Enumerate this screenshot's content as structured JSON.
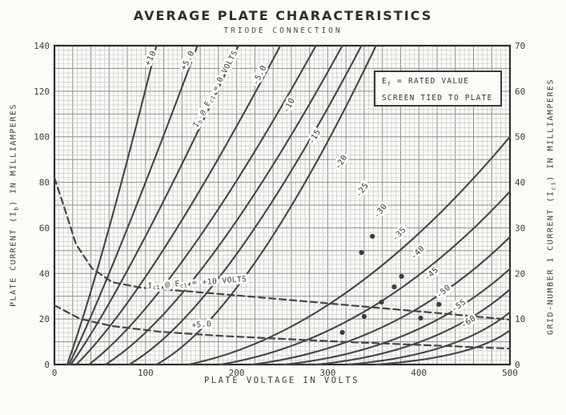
{
  "chart_data": {
    "type": "line",
    "title": "AVERAGE PLATE CHARACTERISTICS",
    "subtitle": "TRIODE CONNECTION",
    "xlabel": "PLATE VOLTAGE IN VOLTS",
    "ylabel_left": "PLATE CURRENT (Ib) IN MILLIAMPERES",
    "ylabel_right": "GRID-NUMBER 1 CURRENT (Ic1) IN MILLIAMPERES",
    "ylabel_left_parts": {
      "pre": "PLATE CURRENT (I",
      "sub": "b",
      "post": ") IN MILLIAMPERES"
    },
    "ylabel_right_parts": {
      "pre": "GRID-NUMBER 1 CURRENT (I",
      "sub": "c1",
      "post": ") IN MILLIAMPERES"
    },
    "annotation": {
      "line1_pre": "E",
      "line1_sub": "f",
      "line1_post": " = RATED VALUE",
      "line2": "SCREEN TIED TO PLATE"
    },
    "xlim": [
      0,
      500
    ],
    "ylim_left": [
      0,
      140
    ],
    "ylim_right": [
      0,
      70
    ],
    "x_ticks": [
      0,
      100,
      200,
      300,
      400,
      500
    ],
    "y_ticks_left": [
      0,
      20,
      40,
      60,
      80,
      100,
      120,
      140
    ],
    "y_ticks_right": [
      0,
      10,
      20,
      30,
      40,
      50,
      60,
      70
    ],
    "grid": "fine graph paper, minor 5V x 2mA, major 20V x 10mA",
    "colors": {
      "ink": "#454545",
      "paper": "#fcfbf8",
      "grid_minor": "#c0c0c0",
      "grid_major": "#8d8d8d",
      "frame": "#2e2e2e"
    },
    "plate_series": [
      {
        "grid_volts": "+10",
        "start": [
          14,
          0
        ],
        "ctrl": [
          50,
          40
        ],
        "end": [
          112,
          140
        ],
        "label": "+10",
        "label_at": [
          108,
          134
        ],
        "label_rot": -63
      },
      {
        "grid_volts": "+5.0",
        "start": [
          16,
          0
        ],
        "ctrl": [
          62,
          38
        ],
        "end": [
          157,
          140
        ],
        "label": "+5.0",
        "label_at": [
          148.5,
          133
        ],
        "label_rot": -63
      },
      {
        "grid_volts": "0",
        "start": [
          18,
          0
        ],
        "ctrl": [
          80,
          35
        ],
        "end": [
          202,
          140
        ],
        "label_tokens": [
          "I",
          "_b",
          " @ E",
          "_c1",
          " = 0 VOLTS"
        ],
        "label_at": [
          179,
          120.6
        ],
        "label_rot": -62
      },
      {
        "grid_volts": "-5.0",
        "start": [
          24,
          0
        ],
        "ctrl": [
          105,
          32
        ],
        "end": [
          248,
          140
        ],
        "label": "-5.0",
        "label_at": [
          227.6,
          126.6
        ],
        "label_rot": -63
      },
      {
        "grid_volts": "-10",
        "start": [
          38,
          0
        ],
        "ctrl": [
          135,
          30
        ],
        "end": [
          287,
          140
        ],
        "label": "-10",
        "label_at": [
          260,
          113.3
        ],
        "label_rot": -62
      },
      {
        "grid_volts": "-15",
        "start": [
          56,
          0
        ],
        "ctrl": [
          160,
          26
        ],
        "end": [
          316,
          140
        ],
        "label": "-15",
        "label_at": [
          288,
          99.5
        ],
        "label_rot": -60
      },
      {
        "grid_volts": "-20",
        "start": [
          82,
          0
        ],
        "ctrl": [
          185,
          24
        ],
        "end": [
          337,
          140
        ],
        "label": "-20",
        "label_at": [
          317,
          88.3
        ],
        "label_rot": -57
      },
      {
        "grid_volts": "-25",
        "start": [
          112,
          0
        ],
        "ctrl": [
          212,
          22
        ],
        "end": [
          353,
          140
        ],
        "label": "-25",
        "label_at": [
          340,
          76
        ],
        "label_rot": -54
      },
      {
        "grid_volts": "-30",
        "start": [
          147,
          0
        ],
        "ctrl": [
          320,
          14
        ],
        "end": [
          500,
          100
        ],
        "label": "-30",
        "label_at": [
          360,
          66.8
        ],
        "label_rot": -50
      },
      {
        "grid_volts": "-35",
        "start": [
          182,
          0
        ],
        "ctrl": [
          350,
          11
        ],
        "end": [
          500,
          76
        ],
        "label": "-35",
        "label_at": [
          380.5,
          56.6
        ],
        "label_rot": -47
      },
      {
        "grid_volts": "-40",
        "start": [
          217,
          0
        ],
        "ctrl": [
          378,
          8
        ],
        "end": [
          500,
          56
        ],
        "label": "-40",
        "label_at": [
          400.7,
          48.5
        ],
        "label_rot": -45
      },
      {
        "grid_volts": "-45",
        "start": [
          252,
          0
        ],
        "ctrl": [
          400,
          6
        ],
        "end": [
          500,
          42
        ],
        "label": "-45",
        "label_at": [
          415.6,
          39
        ],
        "label_rot": -42
      },
      {
        "grid_volts": "-50",
        "start": [
          287,
          0
        ],
        "ctrl": [
          420,
          5
        ],
        "end": [
          500,
          33
        ],
        "label": "-50",
        "label_at": [
          428.8,
          31.3
        ],
        "label_rot": -40
      },
      {
        "grid_volts": "-55",
        "start": [
          322,
          0
        ],
        "ctrl": [
          442,
          4
        ],
        "end": [
          500,
          23
        ],
        "label": "-55",
        "label_at": [
          445.5,
          25
        ],
        "label_rot": -37
      },
      {
        "grid_volts": "-60",
        "start": [
          353,
          0
        ],
        "ctrl": [
          460,
          3
        ],
        "end": [
          500,
          15
        ],
        "label": "-60",
        "label_at": [
          456,
          17.9
        ],
        "label_rot": -35
      }
    ],
    "grid_current_series": [
      {
        "name": "Ic1 at Ec1 = +10 volts",
        "label_tokens": [
          "I",
          "_c1",
          " @ E",
          "_c1",
          " = +10 VOLTS"
        ],
        "label_at": [
          157,
          35
        ],
        "label_rot": -4,
        "points": [
          [
            0,
            82
          ],
          [
            10.5,
            69.3
          ],
          [
            23.7,
            52.8
          ],
          [
            41.3,
            42.2
          ],
          [
            63.3,
            36.2
          ],
          [
            94,
            33.8
          ],
          [
            151,
            32
          ],
          [
            212.7,
            29.9
          ],
          [
            274,
            27.8
          ],
          [
            344,
            25.3
          ],
          [
            432,
            22.2
          ],
          [
            500,
            19.7
          ]
        ]
      },
      {
        "name": "Ic1 at Ec1 = +5.0 volts",
        "label_tokens": [
          "+5.0"
        ],
        "label_at": [
          161.7,
          16.5
        ],
        "label_rot": -4,
        "points": [
          [
            0,
            26
          ],
          [
            28,
            20.1
          ],
          [
            63.3,
            16.9
          ],
          [
            116,
            14.4
          ],
          [
            177.5,
            12.7
          ],
          [
            247.8,
            11.3
          ],
          [
            326.9,
            9.8
          ],
          [
            414.7,
            8.4
          ],
          [
            500,
            7
          ]
        ]
      }
    ],
    "dots": [
      [
        316,
        14.1
      ],
      [
        340,
        21.1
      ],
      [
        359,
        27.4
      ],
      [
        373,
        34.1
      ],
      [
        381,
        38.7
      ],
      [
        337,
        49.2
      ],
      [
        349,
        56.3
      ],
      [
        402,
        20.4
      ],
      [
        422,
        26.4
      ]
    ]
  }
}
